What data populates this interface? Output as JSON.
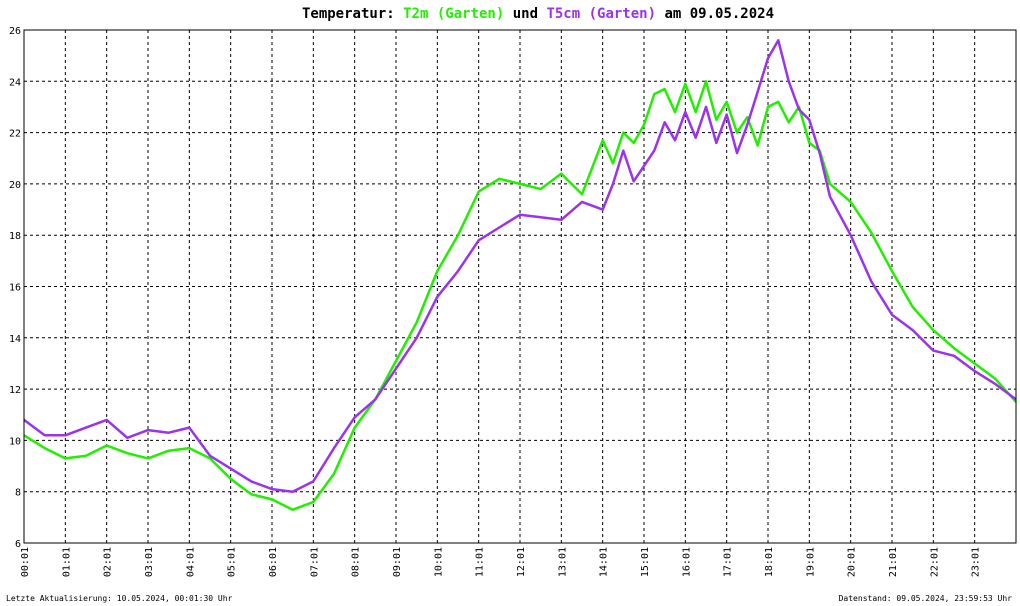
{
  "chart_data": {
    "type": "line",
    "title": {
      "prefix": "Temperatur: ",
      "series1": "T2m (Garten)",
      "middle": " und ",
      "series2": "T5cm (Garten)",
      "suffix": " am 09.05.2024"
    },
    "ylim": [
      6,
      26
    ],
    "y_ticks": [
      6,
      8,
      10,
      12,
      14,
      16,
      18,
      20,
      22,
      24,
      26
    ],
    "xlim": [
      0,
      24
    ],
    "x_ticks": [
      "00:01",
      "01:01",
      "02:01",
      "03:01",
      "04:01",
      "05:01",
      "06:01",
      "07:01",
      "08:01",
      "09:01",
      "10:01",
      "11:01",
      "12:01",
      "13:01",
      "14:01",
      "15:01",
      "16:01",
      "17:01",
      "18:01",
      "19:01",
      "20:01",
      "21:01",
      "22:01",
      "23:01"
    ],
    "grid": true,
    "series": [
      {
        "name": "T2m (Garten)",
        "color": "#22ee00",
        "x": [
          0,
          0.5,
          1,
          1.5,
          2,
          2.5,
          3,
          3.5,
          4,
          4.5,
          5,
          5.5,
          6,
          6.5,
          7,
          7.5,
          8,
          8.5,
          9,
          9.5,
          10,
          10.5,
          11,
          11.5,
          12,
          12.5,
          13,
          13.5,
          14,
          14.25,
          14.5,
          14.75,
          15,
          15.25,
          15.5,
          15.75,
          16,
          16.25,
          16.5,
          16.75,
          17,
          17.25,
          17.5,
          17.75,
          18,
          18.25,
          18.5,
          18.75,
          19,
          19.25,
          19.5,
          20,
          20.5,
          21,
          21.5,
          22,
          22.5,
          23,
          23.5,
          24
        ],
        "y": [
          10.2,
          9.7,
          9.3,
          9.4,
          9.8,
          9.5,
          9.3,
          9.6,
          9.7,
          9.3,
          8.5,
          7.9,
          7.7,
          7.3,
          7.6,
          8.7,
          10.5,
          11.6,
          13.1,
          14.6,
          16.6,
          18.0,
          19.7,
          20.2,
          20.0,
          19.8,
          20.4,
          19.6,
          21.7,
          20.8,
          22.0,
          21.6,
          22.3,
          23.5,
          23.7,
          22.8,
          23.9,
          22.8,
          24.0,
          22.5,
          23.2,
          22.0,
          22.6,
          21.5,
          23.0,
          23.2,
          22.4,
          23.0,
          21.6,
          21.3,
          20.0,
          19.3,
          18.1,
          16.6,
          15.2,
          14.3,
          13.6,
          13.0,
          12.4,
          11.5
        ]
      },
      {
        "name": "T5cm (Garten)",
        "color": "#9933ee",
        "x": [
          0,
          0.5,
          1,
          1.5,
          2,
          2.5,
          3,
          3.5,
          4,
          4.5,
          5,
          5.5,
          6,
          6.5,
          7,
          7.5,
          8,
          8.5,
          9,
          9.5,
          10,
          10.5,
          11,
          11.5,
          12,
          12.5,
          13,
          13.5,
          14,
          14.25,
          14.5,
          14.75,
          15,
          15.25,
          15.5,
          15.75,
          16,
          16.25,
          16.5,
          16.75,
          17,
          17.25,
          17.5,
          17.75,
          18,
          18.25,
          18.5,
          18.75,
          19,
          19.25,
          19.5,
          20,
          20.5,
          21,
          21.5,
          22,
          22.5,
          23,
          23.5,
          24
        ],
        "y": [
          10.8,
          10.2,
          10.2,
          10.5,
          10.8,
          10.1,
          10.4,
          10.3,
          10.5,
          9.4,
          8.9,
          8.4,
          8.1,
          8.0,
          8.4,
          9.7,
          10.9,
          11.6,
          12.8,
          14.0,
          15.6,
          16.6,
          17.8,
          18.3,
          18.8,
          18.7,
          18.6,
          19.3,
          19.0,
          20.0,
          21.3,
          20.1,
          20.7,
          21.3,
          22.4,
          21.7,
          22.8,
          21.8,
          23.0,
          21.6,
          22.7,
          21.2,
          22.3,
          23.6,
          24.9,
          25.6,
          24.0,
          22.9,
          22.5,
          21.2,
          19.5,
          18.0,
          16.2,
          14.9,
          14.3,
          13.5,
          13.3,
          12.7,
          12.2,
          11.6
        ]
      }
    ],
    "footer_left": "Letzte Aktualisierung: 10.05.2024, 00:01:30 Uhr",
    "footer_right": "Datenstand: 09.05.2024, 23:59:53 Uhr"
  }
}
